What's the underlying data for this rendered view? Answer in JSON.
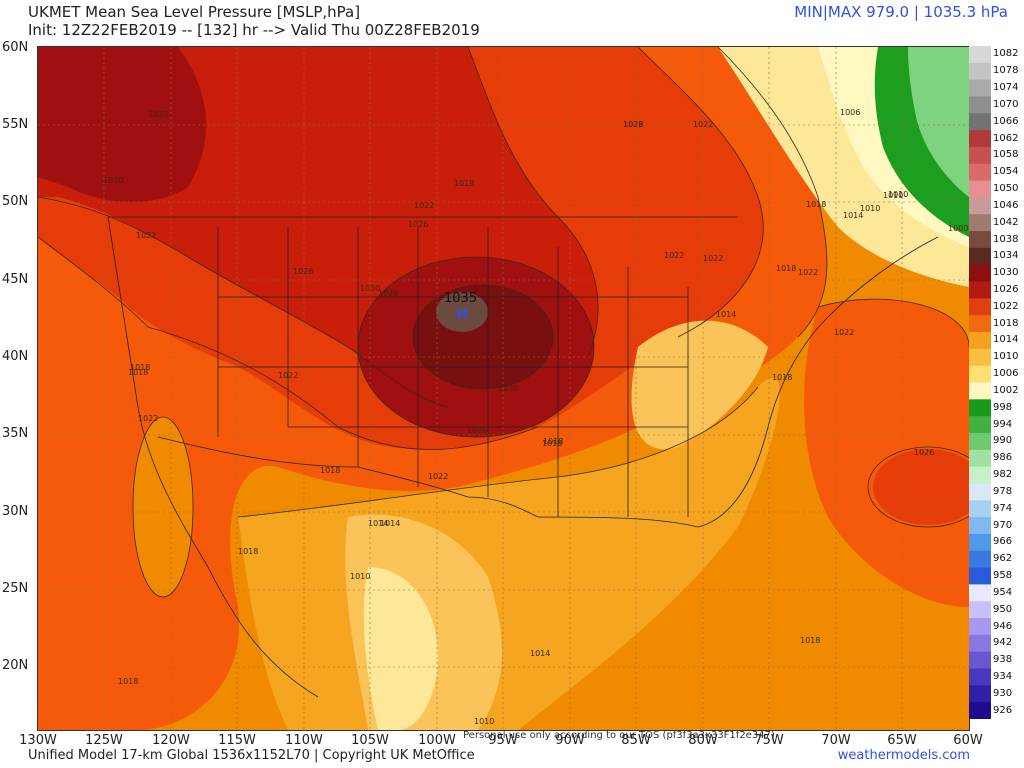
{
  "header": {
    "title": "UKMET Mean Sea Level Pressure [MSLP,hPa]",
    "init": "Init: 12Z22FEB2019 -- [132] hr --> Valid Thu 00Z28FEB2019",
    "minmax": "MIN|MAX 979.0 | 1035.3 hPa"
  },
  "map": {
    "high_center_value": "1035",
    "high_marker": "H",
    "watermark": "Personal use only according to our TOS (pf3f3a3x33F1f2e347)",
    "isobar_labels": [
      "1030",
      "1030",
      "1022",
      "1026",
      "1026",
      "1022",
      "1018",
      "1018",
      "1022",
      "1018",
      "1022",
      "1026",
      "1030",
      "1026",
      "1022",
      "1018",
      "1014",
      "1018",
      "1022",
      "1026",
      "1030",
      "1022",
      "1022",
      "1018",
      "1014",
      "1010",
      "1006",
      "1018",
      "1022",
      "1014",
      "1010",
      "1018",
      "1018",
      "1014",
      "1010",
      "1026",
      "1018",
      "1014",
      "1010",
      "1010",
      "1000",
      "1022",
      "1022",
      "1018",
      "1018"
    ],
    "colors": {
      "high_core": "#7a0f0f",
      "high_dark": "#a01010",
      "red": "#c81e0a",
      "red_orange": "#e63c0a",
      "orange_red": "#f55a0a",
      "orange": "#f08a00",
      "light_orange": "#f5a520",
      "pale_orange": "#fbc45a",
      "yellow": "#fde89a",
      "green": "#1e9e1e",
      "light_green": "#7ed37e"
    }
  },
  "axes": {
    "lat_labels": [
      "60N",
      "55N",
      "50N",
      "45N",
      "40N",
      "35N",
      "30N",
      "25N",
      "20N"
    ],
    "lon_labels": [
      "130W",
      "125W",
      "120W",
      "115W",
      "110W",
      "105W",
      "100W",
      "95W",
      "90W",
      "85W",
      "80W",
      "75W",
      "70W",
      "65W",
      "60W"
    ]
  },
  "colorbar": {
    "levels": [
      "1082",
      "1078",
      "1074",
      "1070",
      "1066",
      "1062",
      "1058",
      "1054",
      "1050",
      "1046",
      "1042",
      "1038",
      "1034",
      "1030",
      "1026",
      "1022",
      "1018",
      "1014",
      "1010",
      "1006",
      "1002",
      "998",
      "994",
      "990",
      "986",
      "982",
      "978",
      "974",
      "970",
      "966",
      "962",
      "958",
      "954",
      "950",
      "946",
      "942",
      "938",
      "934",
      "930",
      "926"
    ],
    "colors": [
      "#d8d8d8",
      "#c4c4c4",
      "#aaaaaa",
      "#8f8f8f",
      "#737373",
      "#b03a3a",
      "#c85050",
      "#d86a6a",
      "#e89090",
      "#c89a9a",
      "#a07a70",
      "#7a4a40",
      "#5a2a20",
      "#8c1010",
      "#b01a10",
      "#e04010",
      "#f06a10",
      "#f5a020",
      "#f8c040",
      "#fde070",
      "#fff8c0",
      "#1a9a1a",
      "#40b040",
      "#70c870",
      "#a0e0a0",
      "#c8f0c8",
      "#d8e8f8",
      "#a8d0f0",
      "#80b8f0",
      "#5098e8",
      "#3a7ae0",
      "#2a5ad8",
      "#e8e8ff",
      "#c8c0f8",
      "#a898f0",
      "#8878e0",
      "#6858d0",
      "#4838c0",
      "#3020a8",
      "#200a90"
    ]
  },
  "footer": {
    "left": "Unified Model 17-km Global 1536x1152L70 | Copyright UK MetOffice",
    "right": "weathermodels.com"
  }
}
